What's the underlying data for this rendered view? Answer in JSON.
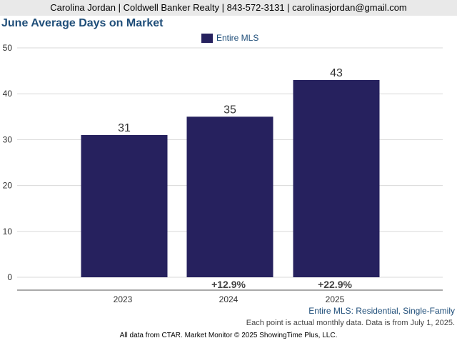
{
  "header": {
    "contact_line": "Carolina Jordan | Coldwell Banker Realty | 843-572-3131 | carolinasjordan@gmail.com"
  },
  "chart_data": {
    "type": "bar",
    "title": "June Average Days on Market",
    "categories": [
      "2023",
      "2024",
      "2025"
    ],
    "series": [
      {
        "name": "Entire MLS",
        "values": [
          31,
          35,
          43
        ],
        "data_labels": [
          "31",
          "35",
          "43"
        ],
        "change_labels": [
          "",
          "+12.9%",
          "+22.9%"
        ],
        "color": "#26215e"
      }
    ],
    "xlabel": "",
    "ylabel": "",
    "ylim": [
      0,
      50
    ],
    "y_ticks": [
      0,
      10,
      20,
      30,
      40,
      50
    ],
    "grid": true,
    "legend_position": "top-center"
  },
  "footer": {
    "subset_note": "Entire MLS: Residential, Single-Family",
    "data_note": "Each point is actual monthly data. Data is from July 1, 2025.",
    "source_note": "All data from CTAR. Market Monitor © 2025 ShowingTime Plus, LLC."
  }
}
